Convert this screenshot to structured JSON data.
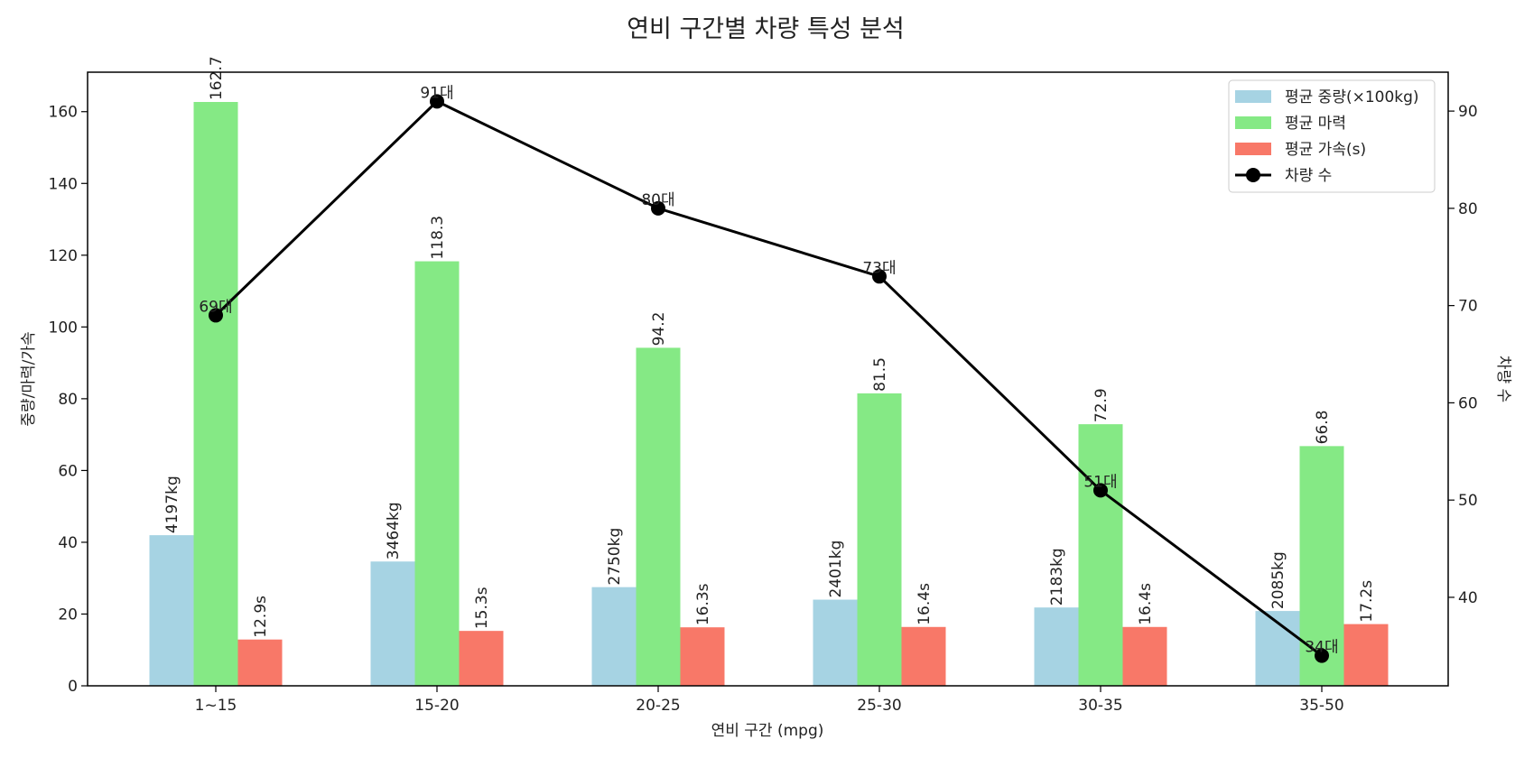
{
  "chart_data": {
    "type": "bar",
    "title": "연비 구간별 차량 특성 분석",
    "xlabel": "연비 구간 (mpg)",
    "ylabel": "중량/마력/가속",
    "y2label": "차량 수",
    "categories": [
      "1~15",
      "15-20",
      "20-25",
      "25-30",
      "30-35",
      "35-50"
    ],
    "ylim": [
      0,
      171
    ],
    "yticks": [
      0,
      20,
      40,
      60,
      80,
      100,
      120,
      140,
      160
    ],
    "y2lim": [
      30.9,
      94
    ],
    "y2ticks": [
      40,
      50,
      60,
      70,
      80,
      90
    ],
    "series": [
      {
        "name": "평균 중량(×100kg)",
        "color": "#a6d3e3",
        "values": [
          41.97,
          34.64,
          27.5,
          24.01,
          21.83,
          20.85
        ],
        "labels": [
          "4197kg",
          "3464kg",
          "2750kg",
          "2401kg",
          "2183kg",
          "2085kg"
        ]
      },
      {
        "name": "평균 마력",
        "color": "#85e985",
        "values": [
          162.7,
          118.3,
          94.2,
          81.5,
          72.9,
          66.8
        ],
        "labels": [
          "162.7",
          "118.3",
          "94.2",
          "81.5",
          "72.9",
          "66.8"
        ]
      },
      {
        "name": "평균 가속(s)",
        "color": "#f87868",
        "values": [
          12.9,
          15.3,
          16.3,
          16.4,
          16.4,
          17.2
        ],
        "labels": [
          "12.9s",
          "15.3s",
          "16.3s",
          "16.4s",
          "16.4s",
          "17.2s"
        ]
      }
    ],
    "line_series": {
      "name": "차량 수",
      "color": "#000000",
      "axis": "right",
      "values": [
        69,
        91,
        80,
        73,
        51,
        34
      ],
      "labels": [
        "69대",
        "91대",
        "80대",
        "73대",
        "51대",
        "34대"
      ]
    },
    "legend": "top-right",
    "grid": false
  }
}
